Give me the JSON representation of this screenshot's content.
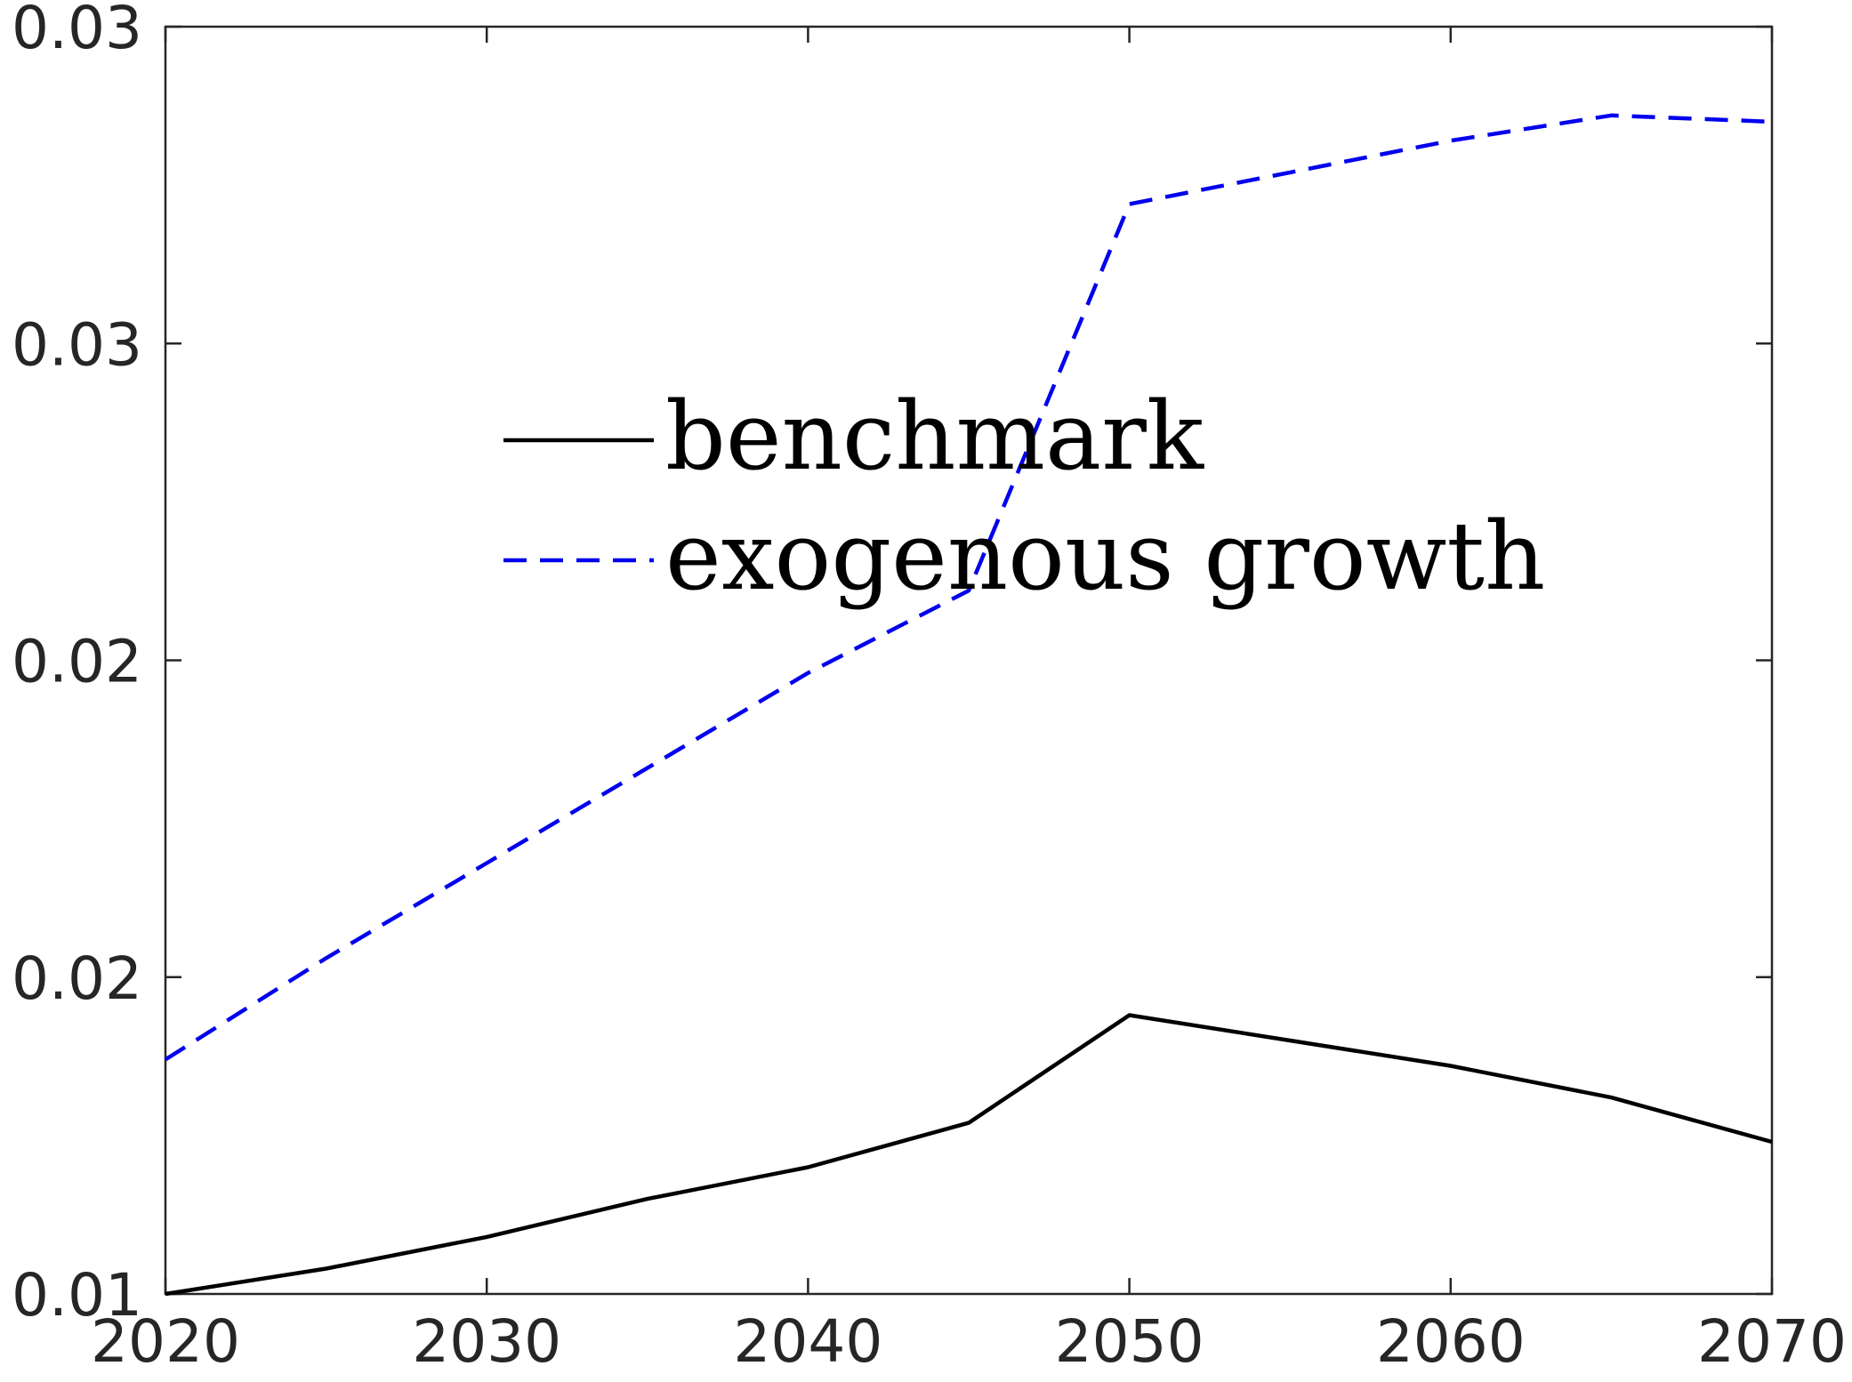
{
  "chart_data": {
    "type": "line",
    "title": "",
    "xlabel": "",
    "ylabel": "",
    "x": [
      2020,
      2025,
      2030,
      2035,
      2040,
      2045,
      2050,
      2055,
      2060,
      2065,
      2070
    ],
    "xlim": [
      2020,
      2070
    ],
    "ylim": [
      0.01,
      0.03
    ],
    "x_ticks": [
      2020,
      2030,
      2040,
      2050,
      2060,
      2070
    ],
    "x_tick_labels": [
      "2020",
      "2030",
      "2040",
      "2050",
      "2060",
      "2070"
    ],
    "y_ticks": [
      0.01,
      0.015,
      0.02,
      0.025,
      0.03
    ],
    "y_tick_labels": [
      "0.01",
      "0.02",
      "0.02",
      "0.03",
      "0.03"
    ],
    "grid": false,
    "legend_position": "upper-center",
    "series": [
      {
        "name": "benchmark",
        "color": "#000000",
        "line_style": "solid",
        "values": [
          0.01,
          0.0104,
          0.0109,
          0.0115,
          0.012,
          0.0127,
          0.0144,
          0.014,
          0.0136,
          0.0131,
          0.0124
        ]
      },
      {
        "name": "exogenous growth",
        "color": "#0000ee",
        "line_style": "dashed",
        "values": [
          0.0137,
          0.0153,
          0.0168,
          0.0183,
          0.0198,
          0.0211,
          0.0272,
          0.0277,
          0.0282,
          0.0286,
          0.0285
        ]
      }
    ]
  }
}
